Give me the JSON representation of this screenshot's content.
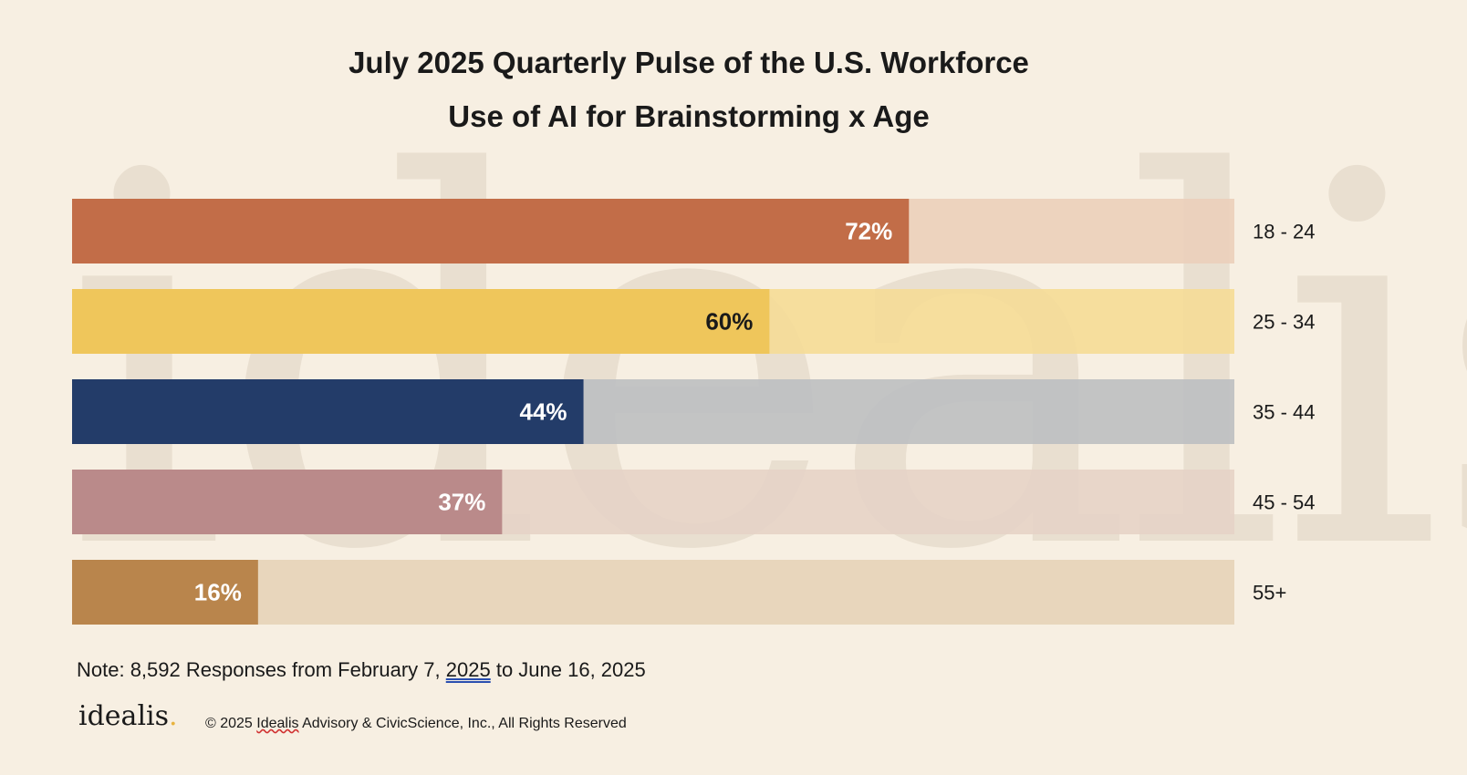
{
  "header": {
    "title": "July 2025 Quarterly Pulse of the U.S. Workforce",
    "subtitle": "Use of AI for Brainstorming x Age"
  },
  "chart_data": {
    "type": "bar",
    "orientation": "horizontal",
    "title": "July 2025 Quarterly Pulse of the U.S. Workforce",
    "subtitle": "Use of AI for Brainstorming x Age",
    "categories": [
      "18 - 24",
      "25 - 34",
      "35 - 44",
      "45 - 54",
      "55+"
    ],
    "values": [
      72,
      60,
      44,
      37,
      16
    ],
    "value_labels": [
      "72%",
      "60%",
      "44%",
      "37%",
      "16%"
    ],
    "xlim": [
      0,
      100
    ],
    "grid": false,
    "bar_colors": [
      "#c26d48",
      "#efc65b",
      "#233c69",
      "#ba8a8a",
      "#b9854c"
    ],
    "track_colors": [
      "#ebcfba",
      "#f5dc96",
      "#bcbfc1",
      "#e6d3c6",
      "#e6d3b8"
    ],
    "label_colors": [
      "#ffffff",
      "#1a1a1a",
      "#ffffff",
      "#ffffff",
      "#ffffff"
    ]
  },
  "footer": {
    "note_prefix": "Note: 8,592 Responses from February 7, ",
    "note_year": "2025",
    "note_suffix": " to June 16, 2025",
    "logo_text": "idealis",
    "logo_dot": ".",
    "copyright_prefix": "© 2025 ",
    "copyright_name": "Idealis",
    "copyright_suffix": " Advisory & CivicScience, Inc.,  All Rights Reserved"
  },
  "watermark": "idealis"
}
